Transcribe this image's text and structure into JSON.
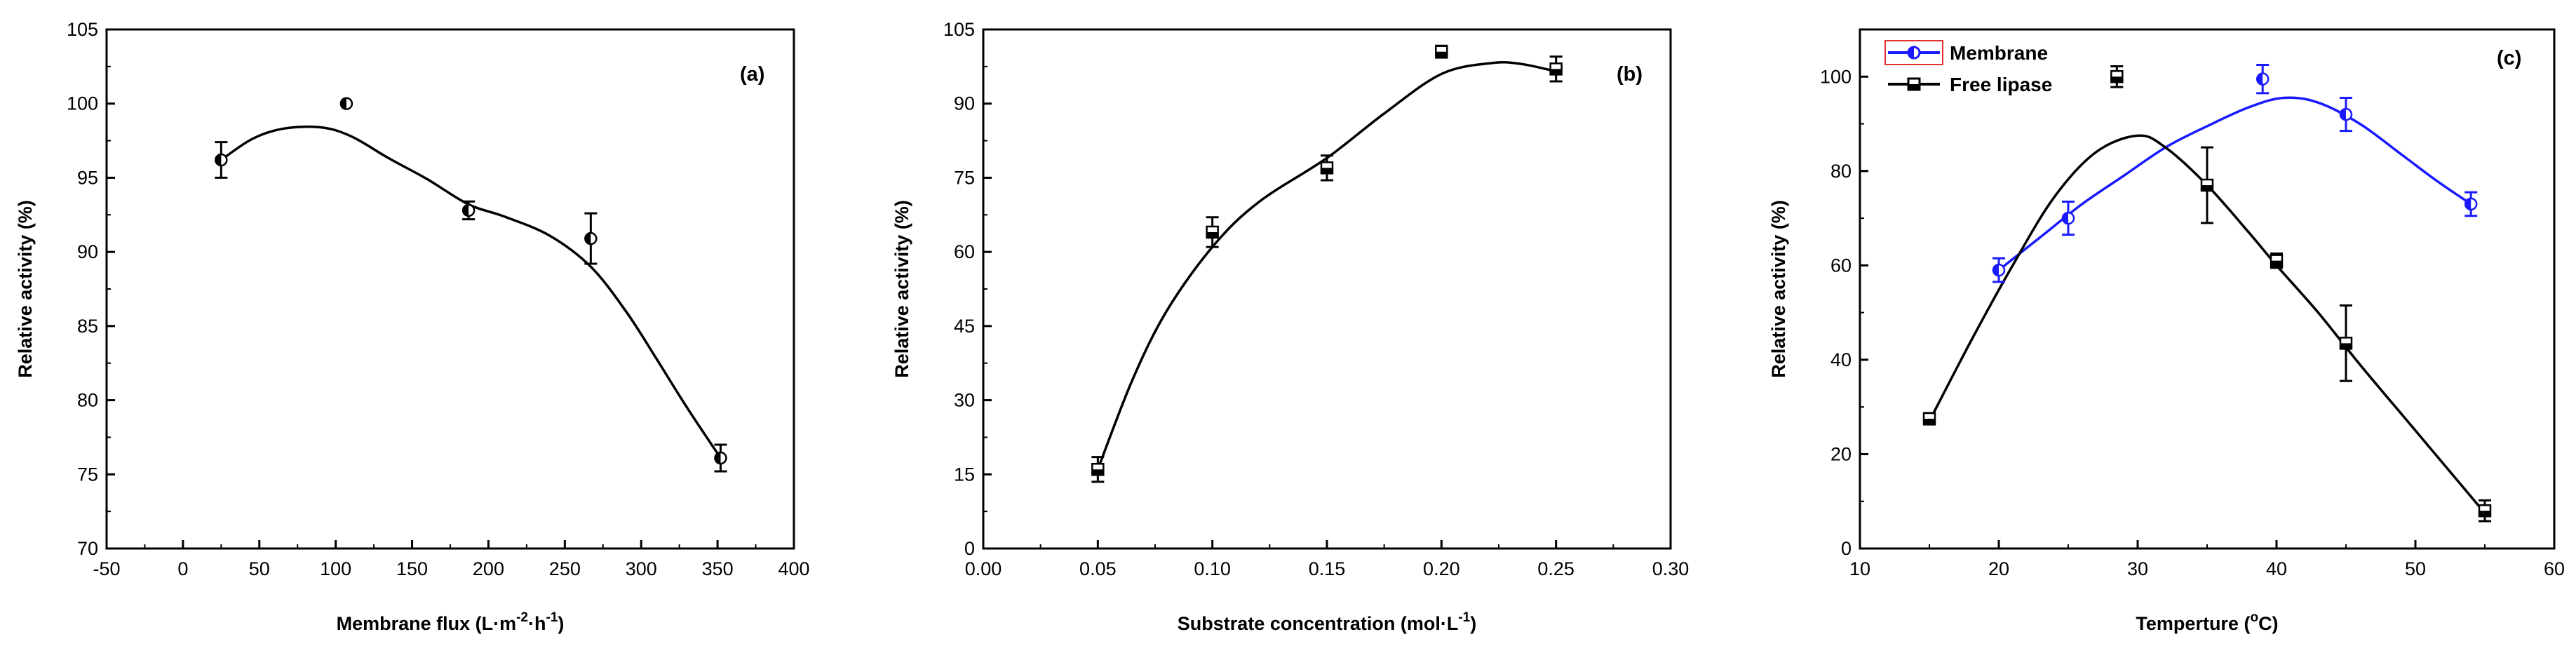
{
  "chart_data": [
    {
      "id": "a",
      "type": "scatter",
      "panel_label": "(a)",
      "xlabel": "Membrane flux (L·m⁻²·h⁻¹)",
      "xlabel_main": "Membrane flux (L·m",
      "xlabel_sup1": "-2",
      "xlabel_mid": "·h",
      "xlabel_sup2": "-1",
      "xlabel_end": ")",
      "ylabel": "Relative activity (%)",
      "xlim": [
        -50,
        400
      ],
      "ylim": [
        70,
        105
      ],
      "xticks": [
        -50,
        0,
        50,
        100,
        150,
        200,
        250,
        300,
        350,
        400
      ],
      "yticks": [
        70,
        75,
        80,
        85,
        90,
        95,
        100,
        105
      ],
      "series": [
        {
          "name": "Membrane",
          "color": "#000000",
          "marker": "half-circle",
          "x": [
            25,
            107,
            187,
            267,
            352
          ],
          "y": [
            96.2,
            100.0,
            92.8,
            90.9,
            76.1
          ],
          "err": [
            1.2,
            0.0,
            0.6,
            1.7,
            0.9
          ],
          "fit_x": [
            25,
            45,
            65,
            90,
            110,
            135,
            160,
            187,
            210,
            240,
            267,
            290,
            310,
            330,
            352
          ],
          "fit_y": [
            96.2,
            97.6,
            98.3,
            98.4,
            97.8,
            96.3,
            94.9,
            93.2,
            92.4,
            91.1,
            89.0,
            86.0,
            82.8,
            79.5,
            76.1
          ]
        }
      ]
    },
    {
      "id": "b",
      "type": "scatter",
      "panel_label": "(b)",
      "xlabel": "Substrate concentration (mol·L⁻¹)",
      "xlabel_main": "Substrate concentration (mol·L",
      "xlabel_sup1": "-1",
      "xlabel_end": ")",
      "ylabel": "Relative activity (%)",
      "xlim": [
        0.0,
        0.3
      ],
      "ylim": [
        0,
        105
      ],
      "xticks": [
        0.0,
        0.05,
        0.1,
        0.15,
        0.2,
        0.25,
        0.3
      ],
      "xtick_labels": [
        "0.00",
        "0.05",
        "0.10",
        "0.15",
        "0.20",
        "0.25",
        "0.30"
      ],
      "yticks": [
        0,
        15,
        30,
        45,
        60,
        75,
        90,
        105
      ],
      "series": [
        {
          "name": "Substrate",
          "color": "#000000",
          "marker": "half-square",
          "x": [
            0.05,
            0.1,
            0.15,
            0.2,
            0.25
          ],
          "y": [
            16,
            64,
            77,
            100.5,
            97
          ],
          "err": [
            2.5,
            3.0,
            2.5,
            1.2,
            2.5
          ],
          "fit_x": [
            0.05,
            0.065,
            0.08,
            0.1,
            0.12,
            0.15,
            0.175,
            0.2,
            0.222,
            0.235,
            0.25
          ],
          "fit_y": [
            16,
            34,
            48,
            61,
            70,
            79,
            88,
            96,
            98.2,
            98,
            96.5
          ]
        }
      ]
    },
    {
      "id": "c",
      "type": "line",
      "panel_label": "(c)",
      "xlabel": "Temperture (°C)",
      "xlabel_main": "Temperture (",
      "xlabel_sup1": "o",
      "xlabel_end": "C)",
      "ylabel": "Relative activity (%)",
      "xlim": [
        10,
        60
      ],
      "ylim": [
        0,
        110
      ],
      "xticks": [
        10,
        20,
        30,
        40,
        50,
        60
      ],
      "yticks": [
        0,
        20,
        40,
        60,
        80,
        100
      ],
      "legend_position": "top-left",
      "series": [
        {
          "name": "Membrane",
          "color": "#1a1aff",
          "marker": "half-circle",
          "x": [
            20,
            25,
            39,
            45,
            54
          ],
          "y": [
            59,
            70,
            99.5,
            92,
            73
          ],
          "err": [
            2.5,
            3.5,
            3.0,
            3.5,
            2.5
          ],
          "fit_x": [
            20,
            23,
            26,
            29,
            32,
            35,
            38,
            40.5,
            43,
            46,
            49,
            51.5,
            54
          ],
          "fit_y": [
            59,
            66,
            73,
            79,
            85,
            89.5,
            93.5,
            95.5,
            94.5,
            90,
            83.5,
            78,
            73
          ]
        },
        {
          "name": "Free lipase",
          "color": "#000000",
          "marker": "half-square",
          "x": [
            15,
            28.5,
            35,
            40,
            45,
            55
          ],
          "y": [
            27.5,
            100,
            77,
            61,
            43.5,
            8
          ],
          "err": [
            1.2,
            2.2,
            8.0,
            1.5,
            8.0,
            2.2
          ],
          "fit_x": [
            15,
            18,
            21,
            24,
            27,
            30,
            32,
            35,
            38,
            40,
            43,
            46,
            50,
            55
          ],
          "fit_y": [
            27,
            44,
            60,
            74.5,
            84,
            87.5,
            85,
            77,
            67,
            60,
            50,
            39,
            25,
            7.5
          ]
        }
      ]
    }
  ]
}
